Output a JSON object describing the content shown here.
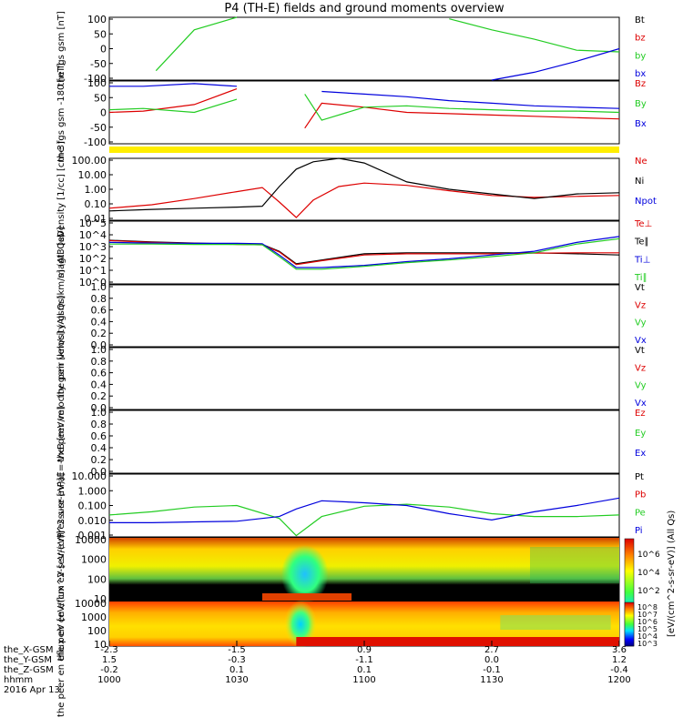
{
  "title": "P4 (TH-E) fields and ground moments overview",
  "footer": {
    "row_labels": [
      "the_X-GSM",
      "the_Y-GSM",
      "the_Z-GSM",
      "hhmm",
      "2016 Apr 13"
    ],
    "columns": [
      {
        "x": "-2.3",
        "y": "1.5",
        "z": "-0.2",
        "t": "1000"
      },
      {
        "x": "-1.5",
        "y": "-0.3",
        "z": "0.1",
        "t": "1030"
      },
      {
        "x": "0.9",
        "y": "-1.1",
        "z": "0.1",
        "t": "1100"
      },
      {
        "x": "2.7",
        "y": "0.0",
        "z": "-0.1",
        "t": "1130"
      },
      {
        "x": "3.6",
        "y": "1.2",
        "z": "-0.4",
        "t": "1200"
      }
    ]
  },
  "colorbar": {
    "label": "[eV/(cm^2-s-sr-eV)] (All Qs)",
    "peir_ticks": [
      "10^6",
      "10^4",
      "10^2"
    ],
    "peer_ticks": [
      "10^8",
      "10^7",
      "10^6",
      "10^5",
      "10^4",
      "10^3"
    ]
  },
  "colors": {
    "black": "#000000",
    "red": "#dd0000",
    "green": "#22cc22",
    "blue": "#0000dd",
    "yellow": "#ffee00"
  },
  "chart_data": [
    {
      "type": "line",
      "id": "fgs",
      "ylabel": "the fgs gsm [nT]",
      "ylim": [
        -100,
        100
      ],
      "yticks": [
        "100",
        "50",
        "0",
        "-50",
        "-100"
      ],
      "legend": [
        {
          "name": "Bt",
          "color": "black"
        },
        {
          "name": "bz",
          "color": "red"
        },
        {
          "name": "by",
          "color": "green"
        },
        {
          "name": "bx",
          "color": "blue"
        }
      ],
      "x": [
        "1000",
        "1011",
        "1020",
        "1030",
        "1044",
        "1050",
        "1060",
        "1100",
        "1110",
        "1120",
        "1130",
        "1140",
        "1150",
        "1200"
      ],
      "series": [
        {
          "name": "by",
          "color": "green",
          "values": [
            null,
            -70,
            60,
            100,
            null,
            null,
            null,
            null,
            null,
            95,
            60,
            30,
            -5,
            -10
          ]
        },
        {
          "name": "bx",
          "color": "blue",
          "values": [
            null,
            null,
            null,
            -80,
            null,
            null,
            null,
            null,
            null,
            null,
            -100,
            -75,
            -40,
            0
          ]
        }
      ]
    },
    {
      "type": "line",
      "id": "fgl",
      "ylabel": "the fgs gsm -180 [nT]",
      "ylim": [
        -120,
        120
      ],
      "yticks": [
        "100",
        "50",
        "0",
        "-50",
        "-100"
      ],
      "legend": [
        {
          "name": "Bz",
          "color": "red"
        },
        {
          "name": "By",
          "color": "green"
        },
        {
          "name": "Bx",
          "color": "blue"
        }
      ],
      "x": [
        "1000",
        "1008",
        "1020",
        "1030",
        "1040",
        "1046",
        "1050",
        "1100",
        "1110",
        "1120",
        "1130",
        "1140",
        "1150",
        "1200"
      ],
      "series": [
        {
          "name": "Bz",
          "color": "red",
          "values": [
            0,
            5,
            30,
            90,
            null,
            -60,
            35,
            20,
            0,
            -5,
            -10,
            -15,
            -20,
            -25
          ]
        },
        {
          "name": "By",
          "color": "green",
          "values": [
            10,
            15,
            0,
            50,
            null,
            70,
            -30,
            20,
            25,
            15,
            10,
            5,
            5,
            0
          ]
        },
        {
          "name": "Bx",
          "color": "blue",
          "values": [
            100,
            100,
            110,
            100,
            null,
            null,
            80,
            70,
            60,
            45,
            35,
            25,
            20,
            15
          ]
        }
      ]
    },
    {
      "type": "line",
      "id": "density",
      "ylabel": "Density [1/cc] [cm-3]",
      "ylim": [
        0.01,
        100
      ],
      "log": true,
      "yticks": [
        "100.00",
        "10.00",
        "1.00",
        "0.10",
        "0.01"
      ],
      "legend": [
        {
          "name": "Ne",
          "color": "red"
        },
        {
          "name": "Ni",
          "color": "black"
        },
        {
          "name": "Npot",
          "color": "blue"
        }
      ],
      "x": [
        "1000",
        "1010",
        "1020",
        "1030",
        "1036",
        "1040",
        "1044",
        "1048",
        "1054",
        "1100",
        "1110",
        "1120",
        "1130",
        "1140",
        "1150",
        "1200"
      ],
      "series": [
        {
          "name": "Ne",
          "color": "red",
          "values": [
            0.06,
            0.1,
            0.25,
            0.7,
            1.3,
            0.15,
            0.015,
            0.2,
            1.5,
            2.5,
            1.8,
            0.8,
            0.4,
            0.3,
            0.35,
            0.4
          ]
        },
        {
          "name": "Ni",
          "color": "black",
          "values": [
            0.04,
            0.05,
            0.06,
            0.07,
            0.08,
            1.5,
            20,
            60,
            100,
            50,
            3,
            1,
            0.5,
            0.25,
            0.5,
            0.6
          ]
        }
      ]
    },
    {
      "type": "line",
      "id": "temp",
      "ylabel": "magt3 [eV]",
      "ylim": [
        1,
        100000
      ],
      "log": true,
      "yticks": [
        "10^5",
        "10^4",
        "10^3",
        "10^2",
        "10^1",
        "10^0"
      ],
      "legend": [
        {
          "name": "Te⊥",
          "color": "red"
        },
        {
          "name": "Te∥",
          "color": "black"
        },
        {
          "name": "Ti⊥",
          "color": "blue"
        },
        {
          "name": "Ti∥",
          "color": "green"
        }
      ],
      "x": [
        "1000",
        "1010",
        "1020",
        "1030",
        "1036",
        "1040",
        "1044",
        "1050",
        "1100",
        "1110",
        "1120",
        "1130",
        "1140",
        "1150",
        "1200"
      ],
      "series": [
        {
          "name": "Te∥",
          "color": "black",
          "values": [
            3000,
            2200,
            1800,
            1500,
            1400,
            400,
            40,
            80,
            250,
            300,
            300,
            300,
            300,
            250,
            200
          ]
        },
        {
          "name": "Te⊥",
          "color": "red",
          "values": [
            2800,
            2000,
            1700,
            1400,
            1300,
            350,
            35,
            70,
            200,
            250,
            250,
            250,
            280,
            300,
            300
          ]
        },
        {
          "name": "Ti⊥",
          "color": "blue",
          "values": [
            2000,
            1800,
            1700,
            1700,
            1600,
            200,
            20,
            20,
            30,
            60,
            100,
            200,
            400,
            2000,
            6000
          ]
        },
        {
          "name": "Ti∥",
          "color": "green",
          "values": [
            1500,
            1500,
            1400,
            1400,
            1300,
            150,
            15,
            15,
            25,
            50,
            80,
            150,
            300,
            1500,
            4000
          ]
        }
      ]
    },
    {
      "type": "line",
      "id": "peir",
      "ylabel": "the peir velocity gsm [km/s] (All Qs)",
      "ylim": [
        0,
        1
      ],
      "yticks": [
        "1.0",
        "0.8",
        "0.6",
        "0.4",
        "0.2",
        "0.0"
      ],
      "legend": [
        {
          "name": "Vt",
          "color": "black"
        },
        {
          "name": "Vz",
          "color": "red"
        },
        {
          "name": "Vy",
          "color": "green"
        },
        {
          "name": "Vx",
          "color": "blue"
        }
      ],
      "series": []
    },
    {
      "type": "line",
      "id": "peer",
      "ylabel": "the peer velocity gsm [km/s] (All Qs)",
      "ylim": [
        0,
        1
      ],
      "yticks": [
        "1.0",
        "0.8",
        "0.6",
        "0.4",
        "0.2",
        "0.0"
      ],
      "legend": [
        {
          "name": "Vt",
          "color": "black"
        },
        {
          "name": "Vz",
          "color": "red"
        },
        {
          "name": "Vy",
          "color": "green"
        },
        {
          "name": "Vx",
          "color": "blue"
        }
      ],
      "series": []
    },
    {
      "type": "line",
      "id": "efield",
      "ylabel": "E=-VxB [mV/m]",
      "ylim": [
        0,
        1
      ],
      "yticks": [
        "1.0",
        "0.8",
        "0.6",
        "0.4",
        "0.2",
        "0.0"
      ],
      "legend": [
        {
          "name": "Ez",
          "color": "red"
        },
        {
          "name": "Ey",
          "color": "green"
        },
        {
          "name": "Ex",
          "color": "blue"
        }
      ],
      "series": []
    },
    {
      "type": "line",
      "id": "pressure",
      "ylabel": "Pressure [nPa]",
      "ylim": [
        0.001,
        10
      ],
      "log": true,
      "yticks": [
        "10.000",
        "1.000",
        "0.100",
        "0.010",
        "0.001"
      ],
      "legend": [
        {
          "name": "Pt",
          "color": "black"
        },
        {
          "name": "Pb",
          "color": "red"
        },
        {
          "name": "Pe",
          "color": "green"
        },
        {
          "name": "Pi",
          "color": "blue"
        }
      ],
      "x": [
        "1000",
        "1010",
        "1020",
        "1030",
        "1040",
        "1044",
        "1050",
        "1100",
        "1110",
        "1120",
        "1130",
        "1140",
        "1150",
        "1200"
      ],
      "series": [
        {
          "name": "Pe",
          "color": "green",
          "values": [
            0.025,
            0.04,
            0.08,
            0.1,
            0.015,
            0.0012,
            0.02,
            0.09,
            0.12,
            0.08,
            0.03,
            0.02,
            0.02,
            0.025
          ]
        },
        {
          "name": "Pi",
          "color": "blue",
          "values": [
            0.008,
            0.008,
            0.009,
            0.01,
            0.02,
            0.06,
            0.2,
            0.15,
            0.1,
            0.03,
            0.012,
            0.04,
            0.1,
            0.3
          ]
        }
      ]
    },
    {
      "type": "heatmap",
      "id": "peir_en",
      "ylabel": "the peir en eflux eV [eV/(cm^2-s-sr-eV)]",
      "ylim": [
        10,
        10000
      ],
      "log": true,
      "yticks": [
        "10000",
        "1000",
        "100",
        "10"
      ]
    },
    {
      "type": "heatmap",
      "id": "peer_en",
      "ylabel": "the peer en eflux eV [eV/(cm^2-s-sr-eV)]",
      "ylim": [
        10,
        10000
      ],
      "log": true,
      "yticks": [
        "10000",
        "1000",
        "100",
        "10"
      ]
    }
  ]
}
